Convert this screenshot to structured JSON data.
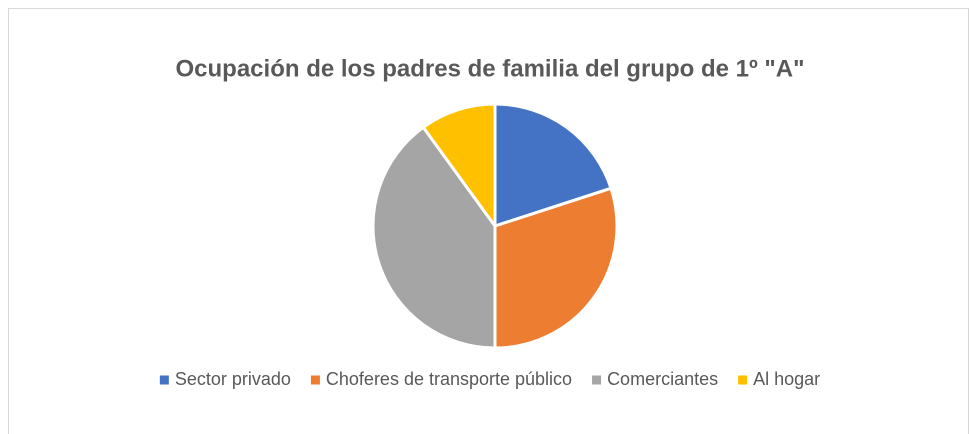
{
  "chart_data": {
    "type": "pie",
    "title": "Ocupación de los padres de familia del grupo de 1º \"A\"",
    "categories": [
      "Sector privado",
      "Choferes de transporte público",
      "Comerciantes",
      "Al hogar"
    ],
    "values": [
      20,
      30,
      40,
      10
    ],
    "colors": [
      "#4472c4",
      "#ed7d31",
      "#a5a5a5",
      "#ffc000"
    ],
    "legend": "bottom"
  }
}
